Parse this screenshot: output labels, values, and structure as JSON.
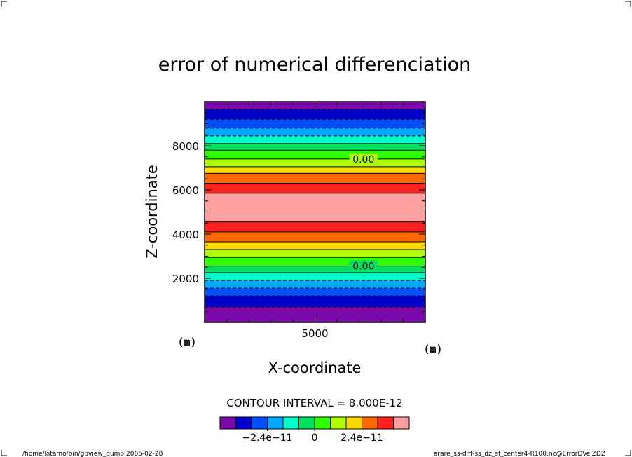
{
  "chart_data": {
    "type": "heatmap",
    "title": "error of numerical differenciation",
    "xlabel": "X-coordinate",
    "ylabel": "Z-coordinate",
    "x_unit": "(m)",
    "y_unit": "(m)",
    "xlim": [
      0,
      10000
    ],
    "ylim": [
      0,
      10000
    ],
    "x_ticks": [
      {
        "value": 5000,
        "label": "5000"
      }
    ],
    "y_ticks": [
      {
        "value": 2000,
        "label": "2000"
      },
      {
        "value": 4000,
        "label": "4000"
      },
      {
        "value": 6000,
        "label": "6000"
      },
      {
        "value": 8000,
        "label": "8000"
      }
    ],
    "contour_interval_text": "CONTOUR INTERVAL = 8.000E-12",
    "contour_interval": 8e-12,
    "colorbar": {
      "colors": [
        "#7a0aa8",
        "#0000c8",
        "#0050ff",
        "#00a8ff",
        "#00ffc8",
        "#00e060",
        "#30ff00",
        "#b0ff00",
        "#ffd800",
        "#ff6a00",
        "#ff2020",
        "#ffa0a0"
      ],
      "tick_labels": [
        {
          "value": -2.4e-11,
          "label": "−2.4e−11"
        },
        {
          "value": 0,
          "label": "0"
        },
        {
          "value": 2.4e-11,
          "label": "2.4e−11"
        }
      ]
    },
    "bands": [
      {
        "z0": 0,
        "z1": 700,
        "color": "#7a0aa8"
      },
      {
        "z0": 700,
        "z1": 1200,
        "color": "#0000c8"
      },
      {
        "z0": 1200,
        "z1": 1550,
        "color": "#0050ff"
      },
      {
        "z0": 1550,
        "z1": 1900,
        "color": "#00a8ff"
      },
      {
        "z0": 1900,
        "z1": 2250,
        "color": "#00ffc8"
      },
      {
        "z0": 2250,
        "z1": 2550,
        "color": "#00e060"
      },
      {
        "z0": 2550,
        "z1": 2950,
        "color": "#30ff00"
      },
      {
        "z0": 2950,
        "z1": 3300,
        "color": "#b0ff00"
      },
      {
        "z0": 3300,
        "z1": 3650,
        "color": "#ffd800"
      },
      {
        "z0": 3650,
        "z1": 4100,
        "color": "#ff6a00"
      },
      {
        "z0": 4100,
        "z1": 4550,
        "color": "#ff2020"
      },
      {
        "z0": 4550,
        "z1": 5850,
        "color": "#ffa0a0"
      },
      {
        "z0": 5850,
        "z1": 6300,
        "color": "#ff2020"
      },
      {
        "z0": 6300,
        "z1": 6750,
        "color": "#ff6a00"
      },
      {
        "z0": 6750,
        "z1": 7050,
        "color": "#ffd800"
      },
      {
        "z0": 7050,
        "z1": 7400,
        "color": "#b0ff00"
      },
      {
        "z0": 7400,
        "z1": 7800,
        "color": "#30ff00"
      },
      {
        "z0": 7800,
        "z1": 8100,
        "color": "#00e060"
      },
      {
        "z0": 8100,
        "z1": 8450,
        "color": "#00ffc8"
      },
      {
        "z0": 8450,
        "z1": 8800,
        "color": "#00a8ff"
      },
      {
        "z0": 8800,
        "z1": 9200,
        "color": "#0050ff"
      },
      {
        "z0": 9200,
        "z1": 9650,
        "color": "#0000c8"
      },
      {
        "z0": 9650,
        "z1": 10000,
        "color": "#7a0aa8"
      }
    ],
    "contour_levels": [
      {
        "z": 700,
        "dashed": true
      },
      {
        "z": 1200,
        "dashed": true
      },
      {
        "z": 1550,
        "dashed": true
      },
      {
        "z": 1900,
        "dashed": true
      },
      {
        "z": 2250,
        "dashed": false
      },
      {
        "z": 2550,
        "dashed": false
      },
      {
        "z": 2950,
        "dashed": false
      },
      {
        "z": 3300,
        "dashed": false
      },
      {
        "z": 3650,
        "dashed": false
      },
      {
        "z": 4100,
        "dashed": false
      },
      {
        "z": 4550,
        "dashed": false
      },
      {
        "z": 5850,
        "dashed": false
      },
      {
        "z": 6300,
        "dashed": false
      },
      {
        "z": 6750,
        "dashed": false
      },
      {
        "z": 7050,
        "dashed": false
      },
      {
        "z": 7400,
        "dashed": false
      },
      {
        "z": 7800,
        "dashed": false
      },
      {
        "z": 8100,
        "dashed": false
      },
      {
        "z": 8450,
        "dashed": true
      },
      {
        "z": 8800,
        "dashed": true
      },
      {
        "z": 9200,
        "dashed": true
      },
      {
        "z": 9650,
        "dashed": true
      }
    ],
    "contour_labels": [
      {
        "x": 7200,
        "z": 7400,
        "label": "0.00"
      },
      {
        "x": 7200,
        "z": 2550,
        "label": "0.00"
      }
    ]
  },
  "footer": {
    "left": "/home/kitamo/bin/gpview_dump  2005-02-28",
    "right": "arare_ss-diff-ss_dz_sf_center4-R100.nc@ErrorDVelZDZ"
  }
}
